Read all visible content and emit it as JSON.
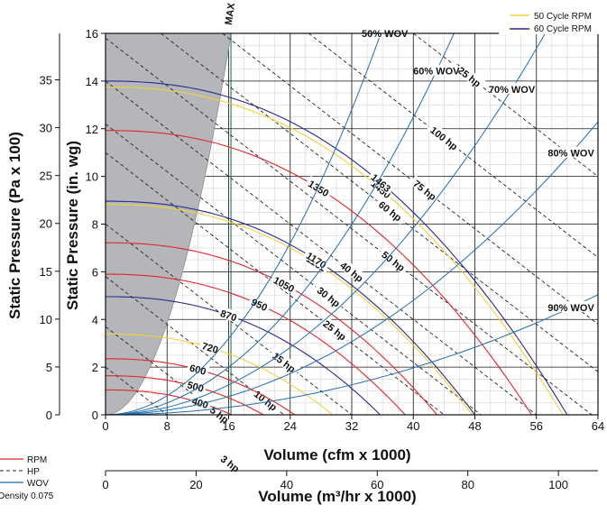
{
  "chart_data": {
    "type": "line",
    "x_axis": {
      "label": "Volume (cfm x 1000)",
      "range": [
        0,
        64
      ],
      "ticks": [
        0,
        8,
        16,
        24,
        32,
        40,
        48,
        56,
        64
      ],
      "tick_labels": [
        "0",
        "8",
        "16",
        "24",
        "32",
        "40",
        "48",
        "56",
        "64"
      ]
    },
    "x_axis_secondary": {
      "label": "Volume (m³/hr x 1000)",
      "ticks": [
        0,
        20,
        40,
        60,
        80,
        100
      ],
      "tick_labels": [
        "0",
        "20",
        "40",
        "60",
        "80",
        "100"
      ]
    },
    "y_axis": {
      "label": "Static Pressure (in. wg)",
      "range": [
        0,
        16
      ],
      "ticks": [
        0,
        2,
        4,
        6,
        8,
        10,
        12,
        14,
        16
      ],
      "tick_labels": [
        "0",
        "2",
        "4",
        "6",
        "8",
        "10",
        "12",
        "14",
        "16"
      ]
    },
    "y_axis_secondary": {
      "label": "Static Pressure (Pa x 100)",
      "ticks": [
        0,
        5,
        10,
        15,
        20,
        25,
        30,
        35
      ],
      "tick_labels": [
        "0",
        "5",
        "10",
        "15",
        "20",
        "25",
        "30",
        "35"
      ]
    },
    "grid": true,
    "legend_top": {
      "placement": "top-right",
      "entries": [
        {
          "label": "50 Cycle RPM",
          "color": "#f2d23a"
        },
        {
          "label": "60 Cycle RPM",
          "color": "#2a2a8c"
        }
      ]
    },
    "legend_bottom": {
      "placement": "bottom-left",
      "entries": [
        {
          "label": "RPM",
          "color": "#e0262b",
          "style": "solid"
        },
        {
          "label": "HP",
          "color": "#222222",
          "style": "dashed"
        },
        {
          "label": "WOV",
          "color": "#1f6fb0",
          "style": "solid"
        }
      ],
      "note": "Density 0.075"
    },
    "max_resistance_label": "MAX RESISTANCE CURVE",
    "max_resistance_curve": {
      "k": 0.06,
      "x_max": 16.3
    },
    "rpm_curves": [
      {
        "label": "400",
        "color": "#e0262b",
        "ratio": 0.273,
        "label_x": 12.3
      },
      {
        "label": "500",
        "color": "#e0262b",
        "ratio": 0.342,
        "label_x": 11.7
      },
      {
        "label": "600",
        "color": "#e0262b",
        "ratio": 0.41,
        "label_x": 12.0
      },
      {
        "label": "720",
        "color": "#f2d23a",
        "ratio": 0.492,
        "label_x": 13.6
      },
      {
        "label": "870",
        "color": "#2a2a8c",
        "ratio": 0.595,
        "label_x": 16.0
      },
      {
        "label": "950",
        "color": "#e0262b",
        "ratio": 0.649,
        "label_x": 20.0
      },
      {
        "label": "1050",
        "color": "#e0262b",
        "ratio": 0.718,
        "label_x": 23.2
      },
      {
        "label": "1161",
        "color": "#f2d23a",
        "ratio": 0.794,
        "label_x": 27.4
      },
      {
        "label": "1170",
        "color": "#2a2a8c",
        "ratio": 0.8,
        "label_x": 27.4
      },
      {
        "label": "1350",
        "color": "#e0262b",
        "ratio": 0.923,
        "label_x": 27.7
      },
      {
        "label": "1450",
        "color": "#f2d23a",
        "ratio": 0.991,
        "label_x": 35.8
      },
      {
        "label": "1463",
        "color": "#2a2a8c",
        "ratio": 1.0,
        "label_x": 35.8
      }
    ],
    "hp_curves": [
      {
        "label": "3 hp",
        "p": 1.0,
        "label_x": 16.2
      },
      {
        "label": "5 hp",
        "p": 1.85,
        "label_x": 14.8
      },
      {
        "label": "10 hp",
        "p": 2.9,
        "label_x": 20.8
      },
      {
        "label": "15 hp",
        "p": 4.0,
        "label_x": 23.2
      },
      {
        "label": "25 hp",
        "p": 5.5,
        "label_x": 29.8
      },
      {
        "label": "30 hp",
        "p": 6.1,
        "label_x": 29.0
      },
      {
        "label": "40 hp",
        "p": 7.0,
        "label_x": 32.0
      },
      {
        "label": "50 hp",
        "p": 7.9,
        "label_x": 37.4
      },
      {
        "label": "60 hp",
        "p": 8.9,
        "label_x": 37.0
      },
      {
        "label": "75 hp",
        "p": 9.9,
        "label_x": 41.5
      },
      {
        "label": "100 hp",
        "p": 11.3,
        "label_x": 44.0
      },
      {
        "label": "125 hp",
        "p": 13.0,
        "label_x": 47.0
      }
    ],
    "wov_curves": [
      {
        "label": "50% WOV",
        "k": 0.0125,
        "label_x": 36.3
      },
      {
        "label": "60% WOV",
        "k": 0.0078,
        "label_x": 43.0
      },
      {
        "label": "70% WOV",
        "k": 0.0049,
        "label_x": 52.8
      },
      {
        "label": "80% WOV",
        "k": 0.003,
        "label_x": 60.5
      },
      {
        "label": "90% WOV",
        "k": 0.00123,
        "label_x": 60.5
      }
    ]
  }
}
